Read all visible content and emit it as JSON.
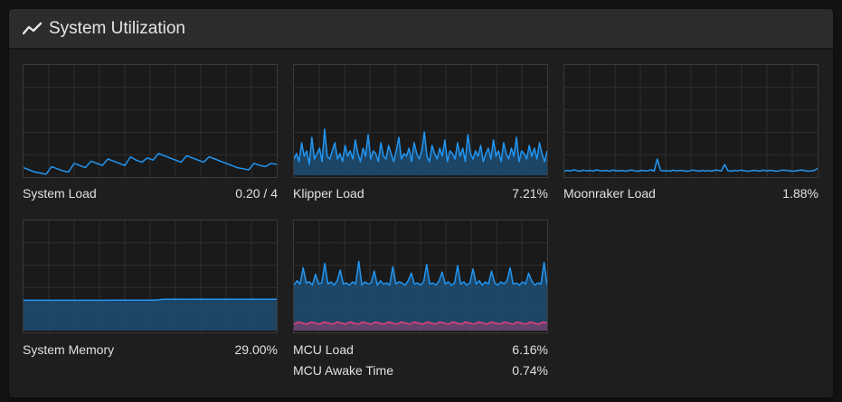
{
  "header": {
    "title": "System Utilization",
    "icon": "chart-line-icon"
  },
  "colors": {
    "accent": "#2196f3",
    "accent_fill": "#1e4a6e",
    "mcu_awake": "#e8407a",
    "grid": "#2e2e2e"
  },
  "tiles": [
    {
      "id": "system-load",
      "rows": [
        {
          "label": "System Load",
          "value": "0.20 / 4"
        }
      ],
      "chart_data": {
        "type": "line",
        "ylim": [
          0,
          1
        ],
        "series": [
          {
            "values": [
              0.07,
              0.05,
              0.03,
              0.02,
              0.01,
              0.08,
              0.06,
              0.04,
              0.03,
              0.11,
              0.09,
              0.07,
              0.13,
              0.11,
              0.09,
              0.15,
              0.13,
              0.11,
              0.09,
              0.17,
              0.14,
              0.12,
              0.16,
              0.14,
              0.2,
              0.18,
              0.16,
              0.14,
              0.12,
              0.18,
              0.16,
              0.14,
              0.12,
              0.17,
              0.15,
              0.13,
              0.11,
              0.09,
              0.07,
              0.06,
              0.05,
              0.11,
              0.09,
              0.08,
              0.11,
              0.1
            ]
          }
        ]
      }
    },
    {
      "id": "klipper-load",
      "rows": [
        {
          "label": "Klipper Load",
          "value": "7.21%"
        }
      ],
      "chart_data": {
        "type": "area",
        "ylim": [
          0,
          40
        ],
        "series": [
          {
            "values": [
              6,
              8,
              5,
              12,
              7,
              9,
              4,
              14,
              6,
              8,
              10,
              5,
              17,
              7,
              6,
              9,
              12,
              6,
              8,
              5,
              11,
              7,
              9,
              6,
              13,
              8,
              5,
              10,
              7,
              15,
              6,
              9,
              8,
              5,
              12,
              7,
              6,
              11,
              8,
              5,
              9,
              14,
              6,
              8,
              7,
              10,
              5,
              12,
              8,
              6,
              9,
              16,
              7,
              5,
              11,
              8,
              6,
              10,
              7,
              13,
              5,
              9,
              8,
              6,
              12,
              7,
              10,
              5,
              15,
              8,
              6,
              9,
              7,
              11,
              5,
              8,
              10,
              6,
              13,
              7,
              9,
              5,
              12,
              8,
              6,
              10,
              7,
              14,
              5,
              9,
              8,
              6,
              11,
              7,
              10,
              6,
              12,
              8,
              5,
              9
            ]
          }
        ]
      }
    },
    {
      "id": "moonraker-load",
      "rows": [
        {
          "label": "Moonraker Load",
          "value": "1.88%"
        }
      ],
      "chart_data": {
        "type": "line",
        "ylim": [
          0,
          40
        ],
        "series": [
          {
            "values": [
              1.5,
              1.8,
              1.6,
              2,
              1.7,
              1.5,
              1.9,
              1.6,
              1.8,
              1.5,
              2,
              1.7,
              1.6,
              1.8,
              1.5,
              1.9,
              1.7,
              1.6,
              1.8,
              1.5,
              1.7,
              1.9,
              1.6,
              1.5,
              1.8,
              1.7,
              1.6,
              2,
              1.5,
              6,
              1.8,
              1.6,
              1.7,
              1.5,
              1.9,
              1.6,
              1.8,
              1.7,
              1.5,
              1.6,
              1.9,
              1.7,
              1.5,
              1.8,
              1.6,
              1.7,
              1.5,
              1.9,
              1.8,
              1.6,
              4,
              1.7,
              1.5,
              1.8,
              1.6,
              1.9,
              1.7,
              1.5,
              1.6,
              1.8,
              1.7,
              1.5,
              1.9,
              1.6,
              1.8,
              1.7,
              1.5,
              1.6,
              1.9,
              1.8,
              1.7,
              1.5,
              1.6,
              1.8,
              1.9,
              1.7,
              1.5,
              1.6,
              1.8,
              2.5
            ]
          }
        ]
      }
    },
    {
      "id": "system-memory",
      "rows": [
        {
          "label": "System Memory",
          "value": "29.00%"
        }
      ],
      "chart_data": {
        "type": "area",
        "ylim": [
          0,
          100
        ],
        "series": [
          {
            "values": [
              28,
              28,
              28,
              28,
              28,
              28,
              28,
              28,
              28,
              28,
              28,
              28,
              28,
              28,
              28,
              28.2,
              28.2,
              28.2,
              28.2,
              28.2,
              28.2,
              28.2,
              28.2,
              28.2,
              28.4,
              29,
              29,
              29,
              29,
              29,
              29,
              29,
              29,
              29,
              29,
              29,
              29,
              29,
              29,
              29,
              29,
              29,
              29,
              29,
              29,
              29
            ]
          }
        ]
      }
    },
    {
      "id": "mcu-load",
      "rows": [
        {
          "label": "MCU Load",
          "value": "6.16%"
        },
        {
          "label": "MCU Awake Time",
          "value": "0.74%"
        }
      ],
      "chart_data": {
        "type": "area",
        "ylim": [
          0,
          10
        ],
        "series": [
          {
            "name": "MCU Load",
            "values": [
              4.2,
              4.6,
              4.3,
              5.8,
              4.4,
              4.5,
              4.2,
              5.2,
              4.3,
              4.4,
              6.2,
              4.3,
              4.5,
              4.2,
              4.6,
              5.6,
              4.3,
              4.4,
              4.2,
              4.5,
              4.3,
              6.4,
              4.2,
              4.5,
              4.3,
              4.4,
              5.5,
              4.2,
              4.6,
              4.3,
              4.4,
              4.2,
              5.9,
              4.3,
              4.5,
              4.4,
              4.2,
              4.6,
              5.3,
              4.3,
              4.4,
              4.2,
              4.5,
              6.1,
              4.3,
              4.4,
              4.2,
              4.6,
              5.4,
              4.3,
              4.5,
              4.2,
              4.4,
              6,
              4.3,
              4.5,
              4.2,
              4.4,
              5.7,
              4.3,
              4.6,
              4.2,
              4.5,
              4.3,
              5.5,
              4.4,
              4.2,
              4.5,
              4.3,
              4.6,
              5.8,
              4.3,
              4.4,
              4.2,
              4.5,
              4.3,
              5.3,
              4.6,
              4.2,
              4.4,
              4.3,
              6.3,
              4.2
            ]
          },
          {
            "name": "MCU Awake Time",
            "values": [
              0.6,
              0.8,
              0.7,
              0.6,
              0.8,
              0.7,
              0.6,
              0.8,
              0.7,
              0.6,
              0.8,
              0.7,
              0.6,
              0.8,
              0.7,
              0.6,
              0.8,
              0.7,
              0.6,
              0.8,
              0.7,
              0.6,
              0.8,
              0.7,
              0.6,
              0.8,
              0.7,
              0.6,
              0.8,
              0.7,
              0.6,
              0.8,
              0.7,
              0.6,
              0.8,
              0.7,
              0.6,
              0.8,
              0.7,
              0.6,
              0.8,
              0.7,
              0.6,
              0.8,
              0.7,
              0.6,
              0.8,
              0.7,
              0.6,
              0.8,
              0.7,
              0.6,
              0.8,
              0.7,
              0.6,
              0.8,
              0.7,
              0.6,
              0.8,
              0.7
            ]
          }
        ]
      }
    }
  ]
}
